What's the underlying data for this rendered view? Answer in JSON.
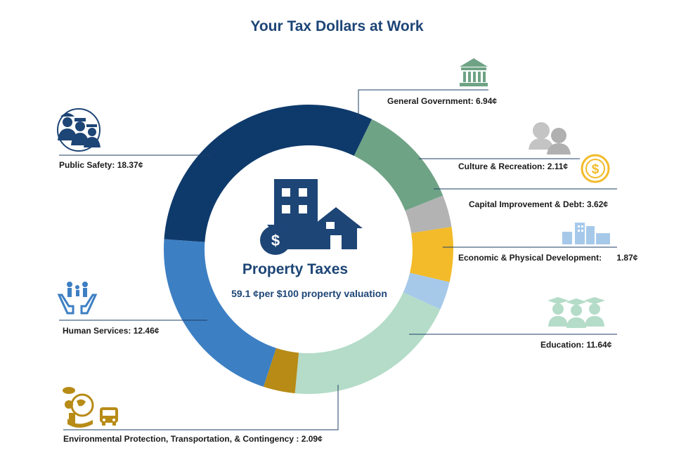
{
  "title": "Your Tax Dollars at Work",
  "center": {
    "title": "Property Taxes",
    "subtitle": "59.1 ¢per $100 property valuation"
  },
  "icons": {
    "general_government": "government-building-icon",
    "culture_recreation": "people-icon",
    "capital_improvement": "dollar-coin-icon",
    "economic_development": "city-buildings-icon",
    "education": "graduates-icon",
    "public_safety": "police-firefighter-icon",
    "human_services": "family-hands-icon",
    "environmental": "environment-bus-icon",
    "center": "building-house-moneybag-icon"
  },
  "chart_data": {
    "type": "pie",
    "title": "Your Tax Dollars at Work",
    "unit": "¢",
    "total": 59.1,
    "slices": [
      {
        "label": "General Government",
        "value": 6.94,
        "display": "6.94¢",
        "color": "#6fa386"
      },
      {
        "label": "Culture & Recreation",
        "value": 2.11,
        "display": "2.11¢",
        "color": "#b3b3b3"
      },
      {
        "label": "Capital Improvement & Debt",
        "value": 3.62,
        "display": "3.62¢",
        "color": "#f3bb29"
      },
      {
        "label": "Economic & Physical Development",
        "value": 1.87,
        "display": "1.87¢",
        "color": "#a6c9ea"
      },
      {
        "label": "Education",
        "value": 11.64,
        "display": "11.64¢",
        "color": "#b4dcc8"
      },
      {
        "label": "Environmental Protection, Transportation, & Contingency",
        "value": 2.09,
        "display": "2.09¢",
        "color": "#b78b16"
      },
      {
        "label": "Human Services",
        "value": 12.46,
        "display": "12.46¢",
        "color": "#3d7fc3"
      },
      {
        "label": "Public Safety",
        "value": 18.37,
        "display": "18.37¢",
        "color": "#0e3a6b"
      }
    ]
  },
  "labels": {
    "general_government": {
      "name": "General Government:",
      "value": "6.94¢"
    },
    "culture_recreation": {
      "name": "Culture & Recreation:",
      "value": "2.11¢"
    },
    "capital_improvement": {
      "name": "Capital Improvement & Debt:",
      "value": "3.62¢"
    },
    "economic_development": {
      "name": "Economic & Physical Development:",
      "value": "1.87¢"
    },
    "education": {
      "name": "Education:",
      "value": "11.64¢"
    },
    "environmental": {
      "name": "Environmental Protection, Transportation, & Contingency :",
      "value": "2.09¢"
    },
    "human_services": {
      "name": "Human Services:",
      "value": "12.46¢"
    },
    "public_safety": {
      "name": "Public Safety:",
      "value": "18.37¢"
    }
  }
}
